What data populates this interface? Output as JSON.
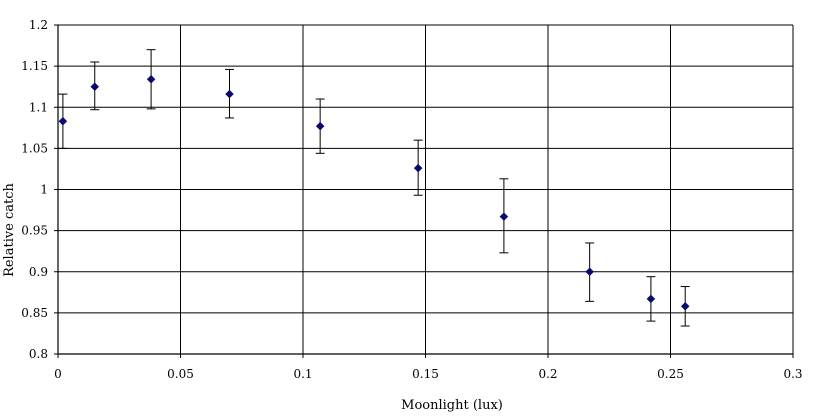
{
  "chart_data": {
    "type": "scatter",
    "xlabel": "Moonlight (lux)",
    "ylabel": "Relative catch",
    "xlim": [
      0,
      0.3
    ],
    "ylim": [
      0.8,
      1.2
    ],
    "grid": true,
    "x_ticks": [
      "0",
      "0.05",
      "0.1",
      "0.15",
      "0.2",
      "0.25",
      "0.3"
    ],
    "y_ticks": [
      "0.8",
      "0.85",
      "0.9",
      "0.95",
      "1",
      "1.05",
      "1.1",
      "1.15",
      "1.2"
    ],
    "marker_color": "#0a0a6e",
    "series": [
      {
        "points": [
          {
            "x": 0.002,
            "y": 1.083,
            "err_low": 1.05,
            "err_high": 1.116
          },
          {
            "x": 0.015,
            "y": 1.125,
            "err_low": 1.097,
            "err_high": 1.155
          },
          {
            "x": 0.038,
            "y": 1.134,
            "err_low": 1.098,
            "err_high": 1.17
          },
          {
            "x": 0.07,
            "y": 1.116,
            "err_low": 1.087,
            "err_high": 1.146
          },
          {
            "x": 0.107,
            "y": 1.077,
            "err_low": 1.044,
            "err_high": 1.11
          },
          {
            "x": 0.147,
            "y": 1.026,
            "err_low": 0.993,
            "err_high": 1.06
          },
          {
            "x": 0.182,
            "y": 0.967,
            "err_low": 0.923,
            "err_high": 1.013
          },
          {
            "x": 0.217,
            "y": 0.9,
            "err_low": 0.864,
            "err_high": 0.935
          },
          {
            "x": 0.242,
            "y": 0.867,
            "err_low": 0.84,
            "err_high": 0.894
          },
          {
            "x": 0.256,
            "y": 0.858,
            "err_low": 0.834,
            "err_high": 0.882
          }
        ]
      }
    ]
  }
}
